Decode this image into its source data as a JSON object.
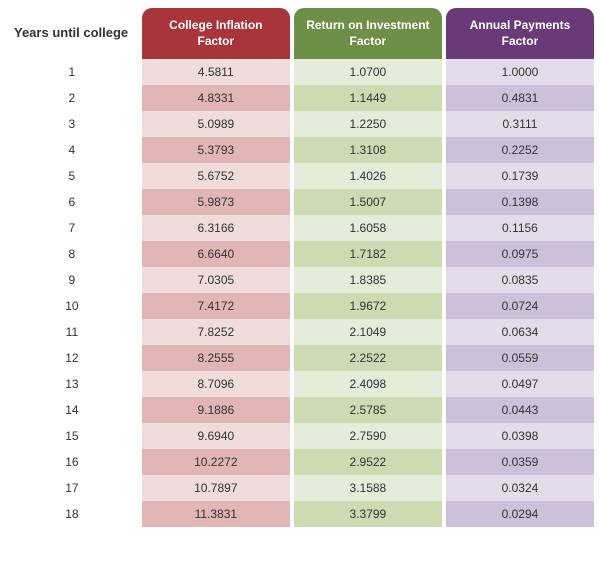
{
  "table": {
    "columns": {
      "years": "Years until college",
      "col1": "College Inflation Factor",
      "col2": "Return on Investment Factor",
      "col3": "Annual Payments Factor"
    },
    "header_colors": {
      "col1": "#a93439",
      "col2": "#6d8f48",
      "col3": "#6a3a78"
    },
    "row_colors": {
      "col1_light": "#f1dcdc",
      "col1_dark": "#e3b6b6",
      "col2_light": "#e6ecda",
      "col2_dark": "#cddbb3",
      "col3_light": "#e5dceb",
      "col3_dark": "#cfc0da"
    },
    "rows": [
      {
        "years": "1",
        "col1": "4.5811",
        "col2": "1.0700",
        "col3": "1.0000"
      },
      {
        "years": "2",
        "col1": "4.8331",
        "col2": "1.1449",
        "col3": "0.4831"
      },
      {
        "years": "3",
        "col1": "5.0989",
        "col2": "1.2250",
        "col3": "0.3111"
      },
      {
        "years": "4",
        "col1": "5.3793",
        "col2": "1.3108",
        "col3": "0.2252"
      },
      {
        "years": "5",
        "col1": "5.6752",
        "col2": "1.4026",
        "col3": "0.1739"
      },
      {
        "years": "6",
        "col1": "5.9873",
        "col2": "1.5007",
        "col3": "0.1398"
      },
      {
        "years": "7",
        "col1": "6.3166",
        "col2": "1.6058",
        "col3": "0.1156"
      },
      {
        "years": "8",
        "col1": "6.6640",
        "col2": "1.7182",
        "col3": "0.0975"
      },
      {
        "years": "9",
        "col1": "7.0305",
        "col2": "1.8385",
        "col3": "0.0835"
      },
      {
        "years": "10",
        "col1": "7.4172",
        "col2": "1.9672",
        "col3": "0.0724"
      },
      {
        "years": "11",
        "col1": "7.8252",
        "col2": "2.1049",
        "col3": "0.0634"
      },
      {
        "years": "12",
        "col1": "8.2555",
        "col2": "2.2522",
        "col3": "0.0559"
      },
      {
        "years": "13",
        "col1": "8.7096",
        "col2": "2.4098",
        "col3": "0.0497"
      },
      {
        "years": "14",
        "col1": "9.1886",
        "col2": "2.5785",
        "col3": "0.0443"
      },
      {
        "years": "15",
        "col1": "9.6940",
        "col2": "2.7590",
        "col3": "0.0398"
      },
      {
        "years": "16",
        "col1": "10.2272",
        "col2": "2.9522",
        "col3": "0.0359"
      },
      {
        "years": "17",
        "col1": "10.7897",
        "col2": "3.1588",
        "col3": "0.0324"
      },
      {
        "years": "18",
        "col1": "11.3831",
        "col2": "3.3799",
        "col3": "0.0294"
      }
    ]
  }
}
